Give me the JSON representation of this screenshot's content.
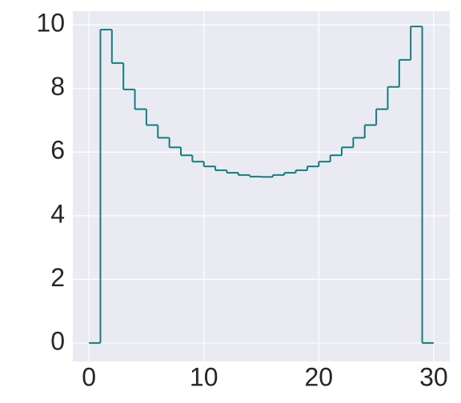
{
  "chart_data": {
    "type": "histogram",
    "histtype": "step",
    "color": "#137e80",
    "bins": [
      0,
      1,
      2,
      3,
      4,
      5,
      6,
      7,
      8,
      9,
      10,
      11,
      12,
      13,
      14,
      15,
      16,
      17,
      18,
      19,
      20,
      21,
      22,
      23,
      24,
      25,
      26,
      27,
      28,
      29,
      30
    ],
    "values": [
      0,
      9.85,
      8.8,
      7.97,
      7.35,
      6.85,
      6.45,
      6.15,
      5.9,
      5.7,
      5.55,
      5.43,
      5.35,
      5.28,
      5.23,
      5.22,
      5.28,
      5.35,
      5.43,
      5.55,
      5.7,
      5.9,
      6.15,
      6.45,
      6.85,
      7.35,
      8.05,
      8.9,
      9.95,
      0
    ],
    "xlim": [
      -1.4,
      31.4
    ],
    "ylim": [
      -0.58,
      10.43
    ],
    "xticks": [
      0,
      10,
      20,
      30
    ],
    "yticks": [
      0,
      2,
      4,
      6,
      8,
      10
    ],
    "grid": true
  }
}
